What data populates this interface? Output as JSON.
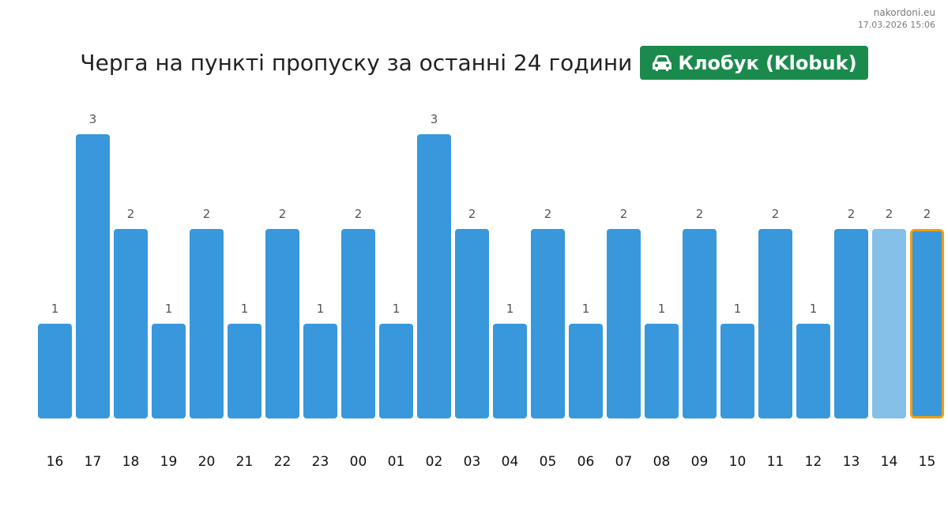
{
  "watermark": {
    "site": "nakordoni.eu",
    "timestamp": "17.03.2026 15:06"
  },
  "header": {
    "title": "Черга на пункті пропуску за останні 24 години",
    "badge": {
      "icon": "car-icon",
      "label": "Клобук (Klobuk)",
      "color": "#1b8b4d"
    }
  },
  "chart_data": {
    "type": "bar",
    "title": "Черга на пункті пропуску за останні 24 години",
    "xlabel": "",
    "ylabel": "",
    "grid": false,
    "categories": [
      "16",
      "17",
      "18",
      "19",
      "20",
      "21",
      "22",
      "23",
      "00",
      "01",
      "02",
      "03",
      "04",
      "05",
      "06",
      "07",
      "08",
      "09",
      "10",
      "11",
      "12",
      "13",
      "14",
      "15"
    ],
    "values": [
      1,
      3,
      2,
      1,
      2,
      1,
      2,
      1,
      2,
      1,
      3,
      2,
      1,
      2,
      1,
      2,
      1,
      2,
      1,
      2,
      1,
      2,
      2,
      2
    ],
    "data_labels": [
      "1",
      "3",
      "2",
      "1",
      "2",
      "1",
      "2",
      "1",
      "2",
      "1",
      "3",
      "2",
      "1",
      "2",
      "1",
      "2",
      "1",
      "2",
      "1",
      "2",
      "1",
      "2",
      "2",
      "2"
    ],
    "ylim": [
      0,
      3
    ],
    "colors": {
      "bar": "#3898db",
      "bar_light": "#85c0e9",
      "current_outline": "#f39c12",
      "label": "#555555"
    },
    "light_index": 22,
    "current_index": 23
  }
}
